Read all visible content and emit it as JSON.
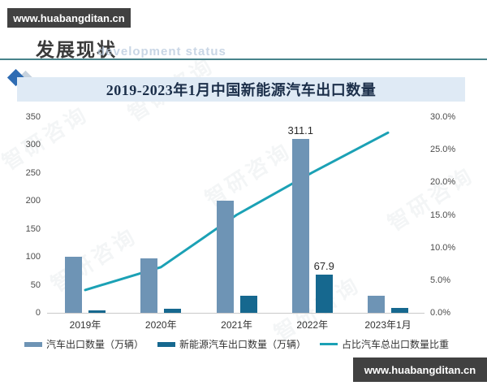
{
  "site": {
    "badge_top": "www.huabangditan.cn",
    "badge_bottom": "www.huabangditan.cn"
  },
  "header": {
    "title": "发展现状",
    "ghost_text": "development status"
  },
  "watermark_text": "智研咨询",
  "chart_title": "2019-2023年1月中国新能源汽车出口数量",
  "chart_data": {
    "type": "combo-bar-line",
    "title": "2019-2023年1月中国新能源汽车出口数量",
    "categories": [
      "2019年",
      "2020年",
      "2021年",
      "2022年",
      "2023年1月"
    ],
    "series": [
      {
        "name": "汽车出口数量（万辆）",
        "type": "bar",
        "color": "#6e94b5",
        "axis": "left",
        "values": [
          100,
          97,
          201,
          311.1,
          30
        ]
      },
      {
        "name": "新能源汽车出口数量（万辆）",
        "type": "bar",
        "color": "#16688f",
        "axis": "left",
        "values": [
          4,
          7,
          30,
          67.9,
          8
        ]
      },
      {
        "name": "占比汽车总出口数量比重",
        "type": "line",
        "color": "#1ba1b5",
        "axis": "right",
        "values": [
          3.5,
          7.0,
          15.0,
          21.5,
          27.6
        ]
      }
    ],
    "left_axis": {
      "min": 0,
      "max": 350,
      "step": 50,
      "tick_labels": [
        "0",
        "50",
        "100",
        "150",
        "200",
        "250",
        "300",
        "350"
      ]
    },
    "right_axis": {
      "min": 0,
      "max": 30,
      "step": 5,
      "tick_labels": [
        "0.0%",
        "5.0%",
        "10.0%",
        "15.0%",
        "20.0%",
        "25.0%",
        "30.0%"
      ]
    },
    "value_labels": [
      {
        "series": 0,
        "category": 3,
        "text": "311.1"
      },
      {
        "series": 1,
        "category": 3,
        "text": "67.9"
      }
    ],
    "grid": false,
    "legend_position": "bottom"
  }
}
